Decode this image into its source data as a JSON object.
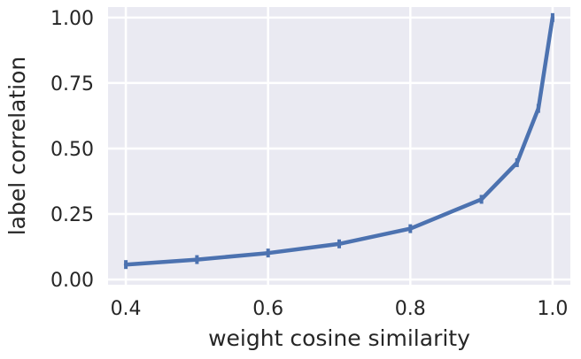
{
  "chart_data": {
    "type": "line",
    "xlabel": "weight cosine similarity",
    "ylabel": "label correlation",
    "xlim": [
      0.375,
      1.025
    ],
    "ylim": [
      -0.02,
      1.04
    ],
    "xticks": [
      0.4,
      0.6,
      0.8,
      1.0
    ],
    "xtick_labels": [
      "0.4",
      "0.6",
      "0.8",
      "1.0"
    ],
    "yticks": [
      0.0,
      0.25,
      0.5,
      0.75,
      1.0
    ],
    "ytick_labels": [
      "0.00",
      "0.25",
      "0.50",
      "0.75",
      "1.00"
    ],
    "grid": true,
    "background": "#eaeaf2",
    "series": [
      {
        "color": "#4c72b0",
        "x": [
          0.4,
          0.5,
          0.6,
          0.7,
          0.8,
          0.9,
          0.95,
          0.98,
          1.0
        ],
        "y": [
          0.057,
          0.076,
          0.101,
          0.136,
          0.194,
          0.306,
          0.446,
          0.653,
          1.0
        ],
        "yerr": [
          0.008,
          0.008,
          0.008,
          0.01,
          0.01,
          0.014,
          0.016,
          0.016,
          0.0
        ]
      }
    ]
  }
}
